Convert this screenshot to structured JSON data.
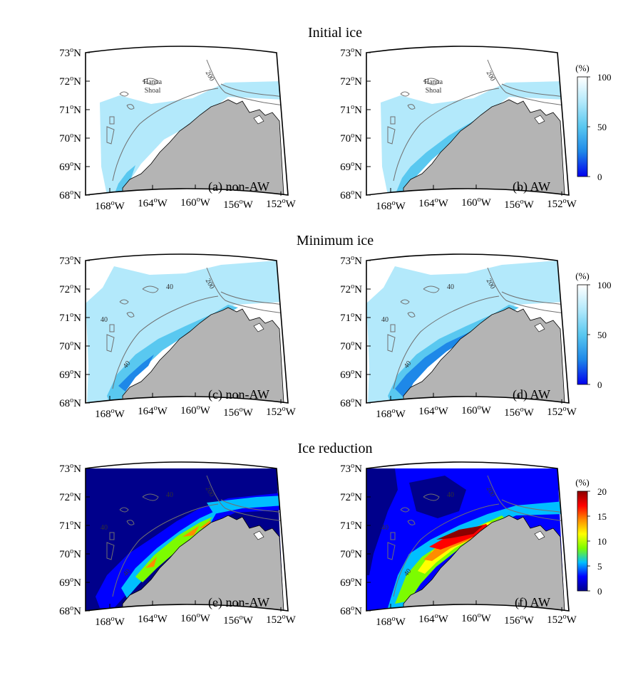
{
  "figure": {
    "row_titles": [
      "Initial ice",
      "Minimum ice",
      "Ice reduction"
    ],
    "lat_labels": [
      "73",
      "72",
      "71",
      "70",
      "69",
      "68"
    ],
    "lon_labels": [
      "168",
      "164",
      "160",
      "156",
      "152"
    ],
    "deg_mark": "o",
    "lat_suffix": "N",
    "lon_suffix": "W",
    "place_labels": {
      "hanna": "Hanna",
      "shoal": "Shoal"
    },
    "contour_labels": {
      "c200": "200",
      "c40": "40"
    },
    "panels": [
      {
        "id": "a",
        "label": "(a) non-AW",
        "row": 0,
        "field": "initial",
        "variant": "nonAW"
      },
      {
        "id": "b",
        "label": "(b) AW",
        "row": 0,
        "field": "initial",
        "variant": "AW"
      },
      {
        "id": "c",
        "label": "(c) non-AW",
        "row": 1,
        "field": "minimum",
        "variant": "nonAW"
      },
      {
        "id": "d",
        "label": "(d) AW",
        "row": 1,
        "field": "minimum",
        "variant": "AW"
      },
      {
        "id": "e",
        "label": "(e) non-AW",
        "row": 2,
        "field": "reduction",
        "variant": "nonAW"
      },
      {
        "id": "f",
        "label": "(f) AW",
        "row": 2,
        "field": "reduction",
        "variant": "AW"
      }
    ],
    "colorbars": [
      {
        "unit": "(%)",
        "ticks": [
          "100",
          "50",
          "0"
        ],
        "range": [
          0,
          100
        ],
        "colormap": "blues"
      },
      {
        "unit": "(%)",
        "ticks": [
          "100",
          "50",
          "0"
        ],
        "range": [
          0,
          100
        ],
        "colormap": "blues"
      },
      {
        "unit": "(%)",
        "ticks": [
          "20",
          "15",
          "10",
          "5",
          "0"
        ],
        "range": [
          0,
          20
        ],
        "colormap": "jet"
      }
    ],
    "colors": {
      "land": "#b4b4b4",
      "frame": "#000000",
      "isobath": "#707070",
      "blues": [
        "#ffffff",
        "#b3e9fb",
        "#59c8f0",
        "#1e88e8",
        "#0000ee"
      ],
      "jet": [
        "#00008b",
        "#0000ff",
        "#00bfff",
        "#7cfc00",
        "#ffff00",
        "#ff8c00",
        "#ff0000",
        "#8b0000"
      ]
    }
  }
}
